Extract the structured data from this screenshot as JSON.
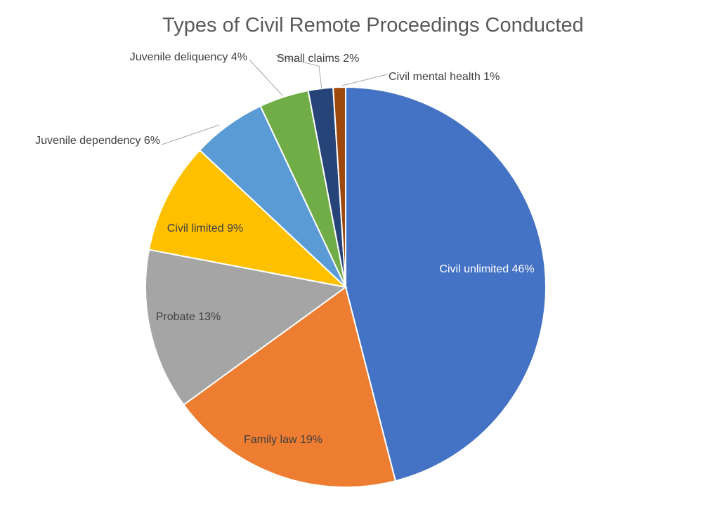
{
  "chart_data": {
    "type": "pie",
    "title": "Types of Civil Remote Proceedings Conducted",
    "slices": [
      {
        "name": "Civil unlimited",
        "value": 46,
        "label": "Civil unlimited 46%",
        "color": "#4472C4",
        "label_color": "#ffffff",
        "label_placement": "inside"
      },
      {
        "name": "Family law",
        "value": 19,
        "label": "Family law 19%",
        "color": "#ED7D31",
        "label_color": "#404040",
        "label_placement": "inside"
      },
      {
        "name": "Probate",
        "value": 13,
        "label": "Probate 13%",
        "color": "#A5A5A5",
        "label_color": "#404040",
        "label_placement": "inside"
      },
      {
        "name": "Civil limited",
        "value": 9,
        "label": "Civil limited 9%",
        "color": "#FFC000",
        "label_color": "#404040",
        "label_placement": "inside"
      },
      {
        "name": "Juvenile dependency",
        "value": 6,
        "label": "Juvenile dependency 6%",
        "color": "#5B9BD5",
        "label_color": "#404040",
        "label_placement": "outside"
      },
      {
        "name": "Juvenile deliquency",
        "value": 4,
        "label": "Juvenile deliquency 4%",
        "color": "#70AD47",
        "label_color": "#404040",
        "label_placement": "outside"
      },
      {
        "name": "Small claims",
        "value": 2,
        "label": "Small claims 2%",
        "color": "#264478",
        "label_color": "#404040",
        "label_placement": "outside"
      },
      {
        "name": "Civil mental health",
        "value": 1,
        "label": "Civil mental health 1%",
        "color": "#9E480E",
        "label_color": "#404040",
        "label_placement": "outside"
      }
    ],
    "start_angle": "12 o'clock",
    "direction": "clockwise",
    "legend": "none"
  }
}
